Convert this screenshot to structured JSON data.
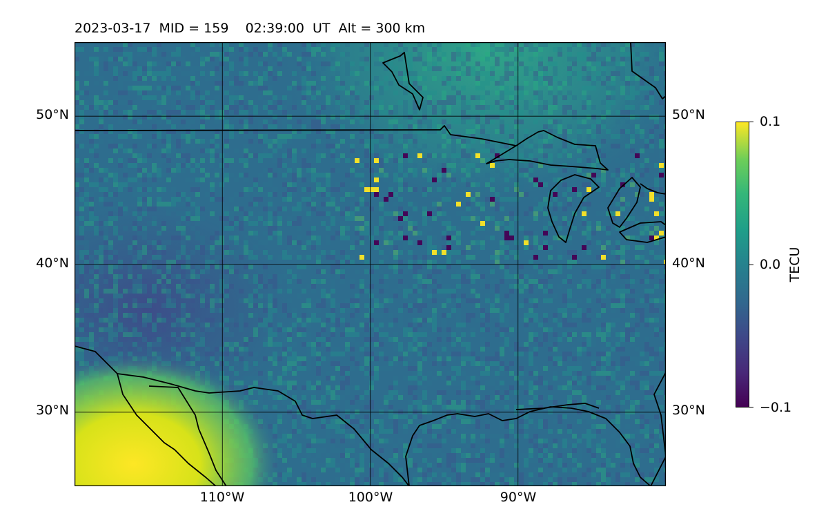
{
  "header": {
    "date": "2023-03-17",
    "mid": "MID = 159",
    "time": "02:39:00  UT",
    "alt": "Alt = 300 km"
  },
  "axes": {
    "lat_ticks": [
      "50°N",
      "40°N",
      "30°N"
    ],
    "lon_ticks": [
      "110°W",
      "100°W",
      "90°W"
    ],
    "lon_range": [
      -120,
      -80
    ],
    "lat_range": [
      25,
      55
    ]
  },
  "colorbar": {
    "label": "TECU",
    "ticks": [
      "0.1",
      "0.0",
      "−0.1"
    ],
    "range": [
      -0.1,
      0.1
    ],
    "colormap": "viridis"
  },
  "colors": {
    "background_field": "#2f6b8c",
    "coastline": "#000000"
  }
}
